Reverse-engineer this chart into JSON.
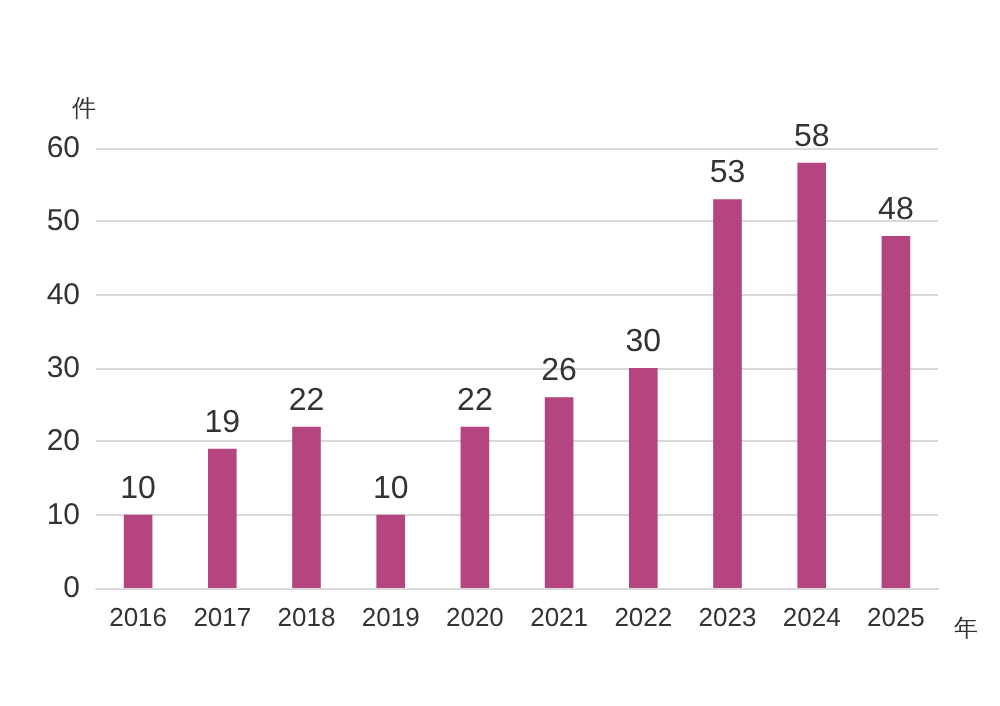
{
  "chart_data": {
    "type": "bar",
    "categories": [
      "2016",
      "2017",
      "2018",
      "2019",
      "2020",
      "2021",
      "2022",
      "2023",
      "2024",
      "2025"
    ],
    "values": [
      10,
      19,
      22,
      10,
      22,
      26,
      30,
      53,
      58,
      48
    ],
    "color": "#b5457e",
    "ylim": [
      0,
      60
    ],
    "yticks": [
      0,
      10,
      20,
      30,
      40,
      50,
      60
    ],
    "grid": "y",
    "data_labels": true,
    "ylabel": "件",
    "xlabel": "年"
  }
}
